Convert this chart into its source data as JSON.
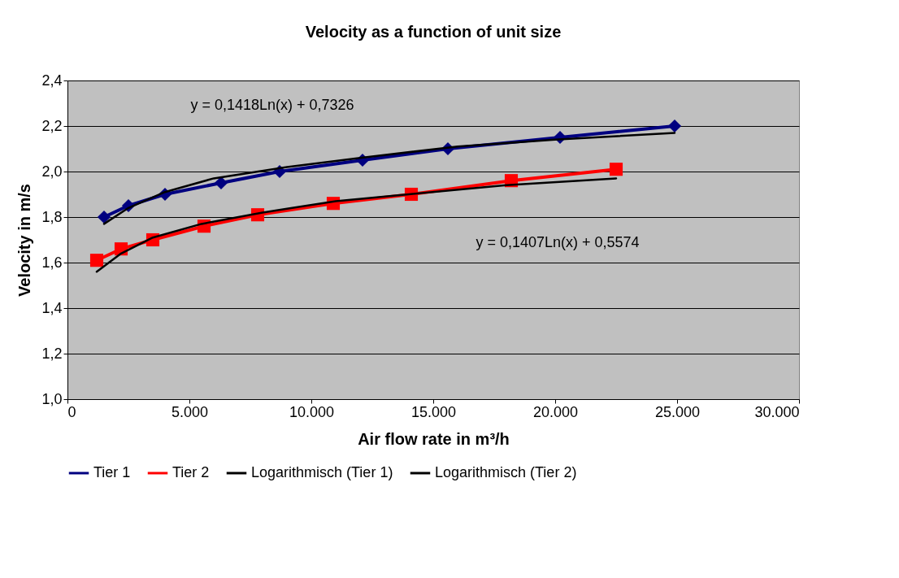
{
  "chart_data": {
    "type": "line",
    "title": "Velocity as a function of unit size",
    "xlabel": "Air flow rate in m³/h",
    "ylabel": "Velocity in m/s",
    "xlim": [
      0,
      30000
    ],
    "xticks": [
      0,
      {
        "value": 5000,
        "label": "5.000"
      },
      {
        "value": 10000,
        "label": "10.000"
      },
      {
        "value": 15000,
        "label": "15.000"
      },
      {
        "value": 20000,
        "label": "20.000"
      },
      {
        "value": 25000,
        "label": "25.000"
      },
      {
        "value": 30000,
        "label": "30.000"
      }
    ],
    "ylim": [
      1.0,
      2.4
    ],
    "yticks": [
      {
        "value": 1.0,
        "label": "1,0"
      },
      {
        "value": 1.2,
        "label": "1,2"
      },
      {
        "value": 1.4,
        "label": "1,4"
      },
      {
        "value": 1.6,
        "label": "1,6"
      },
      {
        "value": 1.8,
        "label": "1,8"
      },
      {
        "value": 2.0,
        "label": "2,0"
      },
      {
        "value": 2.2,
        "label": "2,2"
      },
      {
        "value": 2.4,
        "label": "2,4"
      }
    ],
    "grid": "y",
    "legend": "bottom",
    "line_style": "solid",
    "series": [
      {
        "name": "Tier 1",
        "color": "#000080",
        "marker": "diamond",
        "x": [
          1500,
          2500,
          4000,
          6300,
          8700,
          12100,
          15600,
          20200,
          24900
        ],
        "values": [
          1.8,
          1.85,
          1.9,
          1.95,
          2.0,
          2.05,
          2.1,
          2.15,
          2.2
        ]
      },
      {
        "name": "Tier 2",
        "color": "#ff0000",
        "marker": "square",
        "x": [
          1200,
          2200,
          3500,
          5600,
          7800,
          10900,
          14100,
          18200,
          22500
        ],
        "values": [
          1.61,
          1.66,
          1.7,
          1.76,
          1.81,
          1.86,
          1.9,
          1.96,
          2.01
        ]
      },
      {
        "name": "Logarithmisch (Tier 1)",
        "color": "#000000",
        "type": "line",
        "marker": "none",
        "x": [
          1500,
          2500,
          4000,
          6000,
          9000,
          12000,
          16000,
          20000,
          24900
        ],
        "values": [
          1.77,
          1.84,
          1.91,
          1.97,
          2.02,
          2.06,
          2.11,
          2.14,
          2.17
        ]
      },
      {
        "name": "Logarithmisch (Tier 2)",
        "color": "#000000",
        "type": "line",
        "marker": "none",
        "x": [
          1200,
          2200,
          3500,
          5500,
          8000,
          11000,
          14000,
          18000,
          22500
        ],
        "values": [
          1.56,
          1.64,
          1.71,
          1.77,
          1.82,
          1.87,
          1.9,
          1.94,
          1.97
        ]
      }
    ],
    "annotations": [
      "y = 0,1418Ln(x) + 0,7326",
      "y = 0,1407Ln(x) + 0,5574"
    ]
  }
}
